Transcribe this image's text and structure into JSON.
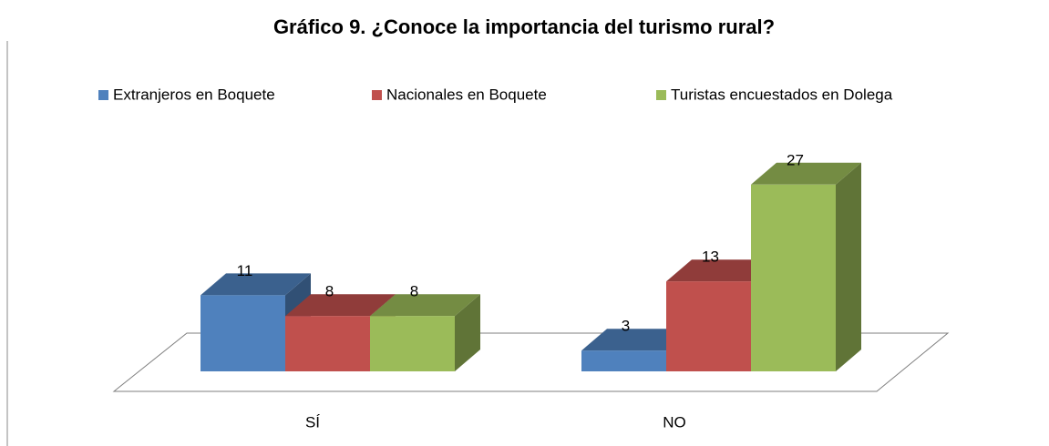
{
  "chart_data": {
    "type": "bar3d",
    "title": "Gráfico 9. ¿Conoce la importancia del turismo rural?",
    "categories": [
      "SÍ",
      "NO"
    ],
    "series": [
      {
        "name": "Extranjeros en Boquete",
        "color": "#4f81bd",
        "values": [
          11,
          3
        ]
      },
      {
        "name": "Nacionales en Boquete",
        "color": "#c0504d",
        "values": [
          8,
          13
        ]
      },
      {
        "name": "Turistas encuestados en Dolega",
        "color": "#9bbb59",
        "values": [
          8,
          27
        ]
      }
    ],
    "legend": "top",
    "data_labels": true
  }
}
